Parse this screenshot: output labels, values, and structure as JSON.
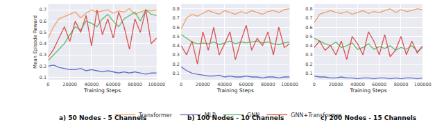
{
  "chart_data": [
    {
      "type": "line",
      "title": "a) 50 Nodes - 5 Channels",
      "x_label": "Training Steps",
      "y_label": "Mean Episode Reward",
      "x": [
        0,
        5000,
        10000,
        15000,
        20000,
        25000,
        30000,
        35000,
        40000,
        45000,
        50000,
        55000,
        60000,
        65000,
        70000,
        75000,
        80000,
        85000,
        90000,
        95000,
        100000
      ],
      "xlim": [
        0,
        100000
      ],
      "xticks": [
        0,
        20000,
        40000,
        60000,
        80000,
        100000
      ],
      "ylim": [
        0.08,
        0.75
      ],
      "yticks": [
        0.1,
        0.2,
        0.3,
        0.4,
        0.5,
        0.6,
        0.7
      ],
      "grid": true,
      "legend": "bottom",
      "series": [
        {
          "name": "Transformer",
          "color": "#f0a060",
          "values": [
            0.45,
            0.55,
            0.62,
            0.64,
            0.66,
            0.68,
            0.63,
            0.67,
            0.7,
            0.68,
            0.69,
            0.7,
            0.67,
            0.69,
            0.68,
            0.71,
            0.66,
            0.68,
            0.7,
            0.69,
            0.7
          ]
        },
        {
          "name": "MLP",
          "color": "#5b6fc4",
          "values": [
            0.2,
            0.21,
            0.19,
            0.18,
            0.17,
            0.17,
            0.18,
            0.16,
            0.17,
            0.16,
            0.15,
            0.16,
            0.15,
            0.14,
            0.15,
            0.14,
            0.15,
            0.14,
            0.13,
            0.14,
            0.14
          ]
        },
        {
          "name": "GNN",
          "color": "#5fb86a",
          "values": [
            0.25,
            0.3,
            0.35,
            0.4,
            0.48,
            0.55,
            0.52,
            0.6,
            0.58,
            0.55,
            0.62,
            0.66,
            0.6,
            0.55,
            0.62,
            0.65,
            0.68,
            0.6,
            0.7,
            0.66,
            0.65
          ]
        },
        {
          "name": "GNN+Transformer",
          "color": "#d9534f",
          "values": [
            0.28,
            0.35,
            0.45,
            0.55,
            0.42,
            0.6,
            0.5,
            0.65,
            0.38,
            0.7,
            0.48,
            0.62,
            0.45,
            0.68,
            0.55,
            0.35,
            0.62,
            0.5,
            0.7,
            0.4,
            0.45
          ]
        }
      ]
    },
    {
      "type": "line",
      "title": "b) 100 Nodes - 10 Channels",
      "x_label": "Training Steps",
      "x": [
        0,
        5000,
        10000,
        15000,
        20000,
        25000,
        30000,
        35000,
        40000,
        45000,
        50000,
        55000,
        60000,
        65000,
        70000,
        75000,
        80000,
        85000,
        90000,
        95000,
        100000
      ],
      "xlim": [
        0,
        100000
      ],
      "xticks": [
        0,
        20000,
        40000,
        60000,
        80000,
        100000
      ],
      "ylim": [
        0.03,
        0.85
      ],
      "yticks": [
        0.1,
        0.2,
        0.3,
        0.4,
        0.5,
        0.6,
        0.7,
        0.8
      ],
      "grid": true,
      "legend": "bottom",
      "series": [
        {
          "name": "Transformer",
          "color": "#f0a060",
          "values": [
            0.58,
            0.7,
            0.74,
            0.72,
            0.75,
            0.78,
            0.76,
            0.74,
            0.78,
            0.76,
            0.74,
            0.77,
            0.75,
            0.78,
            0.76,
            0.74,
            0.77,
            0.78,
            0.76,
            0.79,
            0.8
          ]
        },
        {
          "name": "MLP",
          "color": "#5b6fc4",
          "values": [
            0.17,
            0.13,
            0.1,
            0.09,
            0.08,
            0.07,
            0.07,
            0.08,
            0.06,
            0.07,
            0.06,
            0.06,
            0.07,
            0.06,
            0.06,
            0.05,
            0.06,
            0.06,
            0.05,
            0.06,
            0.06
          ]
        },
        {
          "name": "GNN",
          "color": "#5fb86a",
          "values": [
            0.52,
            0.48,
            0.44,
            0.42,
            0.43,
            0.42,
            0.44,
            0.41,
            0.43,
            0.45,
            0.42,
            0.44,
            0.43,
            0.44,
            0.45,
            0.43,
            0.44,
            0.42,
            0.41,
            0.43,
            0.44
          ]
        },
        {
          "name": "GNN+Transformer",
          "color": "#d9534f",
          "values": [
            0.4,
            0.3,
            0.45,
            0.2,
            0.55,
            0.35,
            0.6,
            0.3,
            0.42,
            0.55,
            0.25,
            0.45,
            0.62,
            0.35,
            0.48,
            0.4,
            0.55,
            0.3,
            0.6,
            0.38,
            0.42
          ]
        }
      ]
    },
    {
      "type": "line",
      "title": "c) 200 Nodes - 15 Channels",
      "x_label": "Training Steps",
      "x": [
        0,
        5000,
        10000,
        15000,
        20000,
        25000,
        30000,
        35000,
        40000,
        45000,
        50000,
        55000,
        60000,
        65000,
        70000,
        75000,
        80000,
        85000,
        90000,
        95000,
        100000
      ],
      "xlim": [
        0,
        100000
      ],
      "xticks": [
        0,
        20000,
        40000,
        60000,
        80000,
        100000
      ],
      "ylim": [
        0.03,
        0.85
      ],
      "yticks": [
        0.1,
        0.2,
        0.3,
        0.4,
        0.5,
        0.6,
        0.7,
        0.8
      ],
      "grid": true,
      "legend": "bottom",
      "series": [
        {
          "name": "Transformer",
          "color": "#f0a060",
          "values": [
            0.65,
            0.74,
            0.76,
            0.78,
            0.76,
            0.75,
            0.77,
            0.74,
            0.76,
            0.78,
            0.75,
            0.77,
            0.76,
            0.78,
            0.8,
            0.76,
            0.79,
            0.77,
            0.78,
            0.8,
            0.79
          ]
        },
        {
          "name": "MLP",
          "color": "#5b6fc4",
          "values": [
            0.07,
            0.06,
            0.06,
            0.05,
            0.05,
            0.06,
            0.05,
            0.05,
            0.04,
            0.05,
            0.05,
            0.04,
            0.05,
            0.05,
            0.04,
            0.05,
            0.04,
            0.05,
            0.05,
            0.04,
            0.05
          ]
        },
        {
          "name": "GNN",
          "color": "#5fb86a",
          "values": [
            0.48,
            0.45,
            0.42,
            0.4,
            0.44,
            0.38,
            0.4,
            0.43,
            0.36,
            0.38,
            0.42,
            0.36,
            0.39,
            0.37,
            0.4,
            0.35,
            0.38,
            0.36,
            0.4,
            0.34,
            0.38
          ]
        },
        {
          "name": "GNN+Transformer",
          "color": "#d9534f",
          "values": [
            0.38,
            0.45,
            0.35,
            0.4,
            0.3,
            0.45,
            0.25,
            0.5,
            0.42,
            0.3,
            0.55,
            0.45,
            0.3,
            0.52,
            0.28,
            0.35,
            0.5,
            0.3,
            0.45,
            0.32,
            0.4
          ]
        }
      ]
    }
  ]
}
